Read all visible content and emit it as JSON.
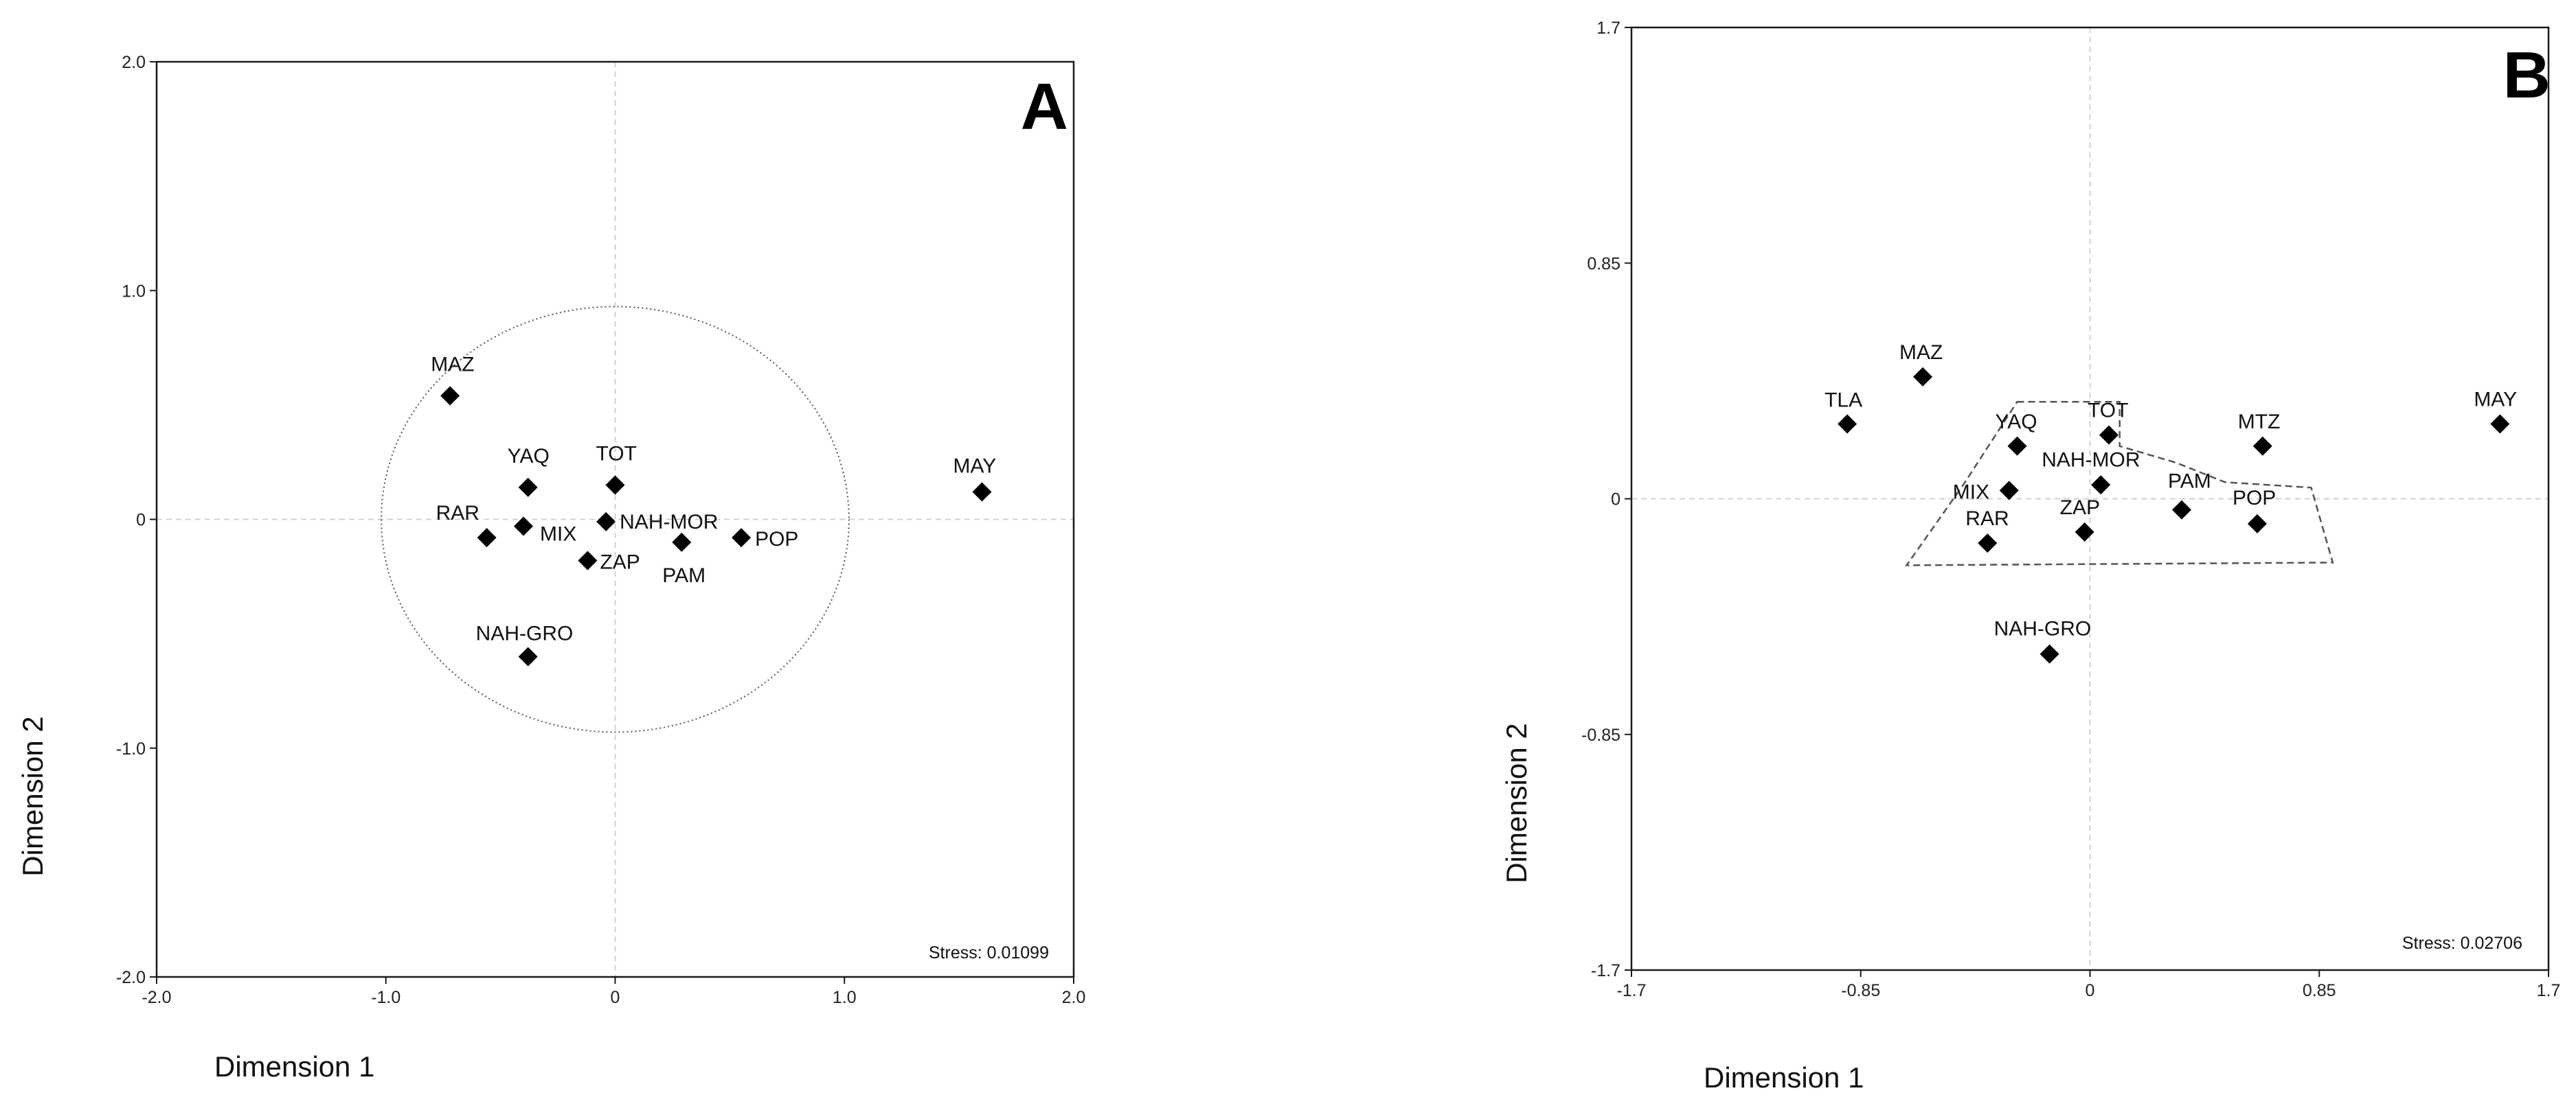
{
  "chart_data": [
    {
      "type": "scatter",
      "panel_label": "A",
      "xlabel": "Dimension 1",
      "ylabel": "Dimension 2",
      "xlim": [
        -2.0,
        2.0
      ],
      "ylim": [
        -2.0,
        2.0
      ],
      "x_ticks": [
        -2.0,
        -1.0,
        0,
        1.0,
        2.0
      ],
      "x_tick_labels": [
        "-2.0",
        "-1.0",
        "0",
        "1.0",
        "2.0"
      ],
      "y_ticks": [
        -2.0,
        -1.0,
        0,
        1.0,
        2.0
      ],
      "y_tick_labels": [
        "-2.0",
        "-1.0",
        "0",
        "1.0",
        "2.0"
      ],
      "grid": false,
      "annotation": "Stress: 0.01099",
      "points": [
        {
          "label": "MAZ",
          "x": -0.72,
          "y": 0.54
        },
        {
          "label": "YAQ",
          "x": -0.38,
          "y": 0.14
        },
        {
          "label": "TOT",
          "x": 0.0,
          "y": 0.15
        },
        {
          "label": "RAR",
          "x": -0.56,
          "y": -0.08
        },
        {
          "label": "MIX",
          "x": -0.4,
          "y": -0.03
        },
        {
          "label": "NAH-MOR",
          "x": -0.04,
          "y": -0.01
        },
        {
          "label": "POP",
          "x": 0.55,
          "y": -0.08
        },
        {
          "label": "PAM",
          "x": 0.29,
          "y": -0.1
        },
        {
          "label": "ZAP",
          "x": -0.12,
          "y": -0.18
        },
        {
          "label": "NAH-GRO",
          "x": -0.38,
          "y": -0.6
        },
        {
          "label": "MAY",
          "x": 1.6,
          "y": 0.12
        }
      ]
    },
    {
      "type": "scatter",
      "panel_label": "B",
      "xlabel": "Dimension 1",
      "ylabel": "Dimension 2",
      "xlim": [
        -1.7,
        1.7
      ],
      "ylim": [
        -1.7,
        1.7
      ],
      "x_ticks": [
        -1.7,
        -0.85,
        0,
        0.85,
        1.7
      ],
      "x_tick_labels": [
        "-1.7",
        "-0.85",
        "0",
        "0.85",
        "1.7"
      ],
      "y_ticks": [
        -1.7,
        -0.85,
        0,
        0.85,
        1.7
      ],
      "y_tick_labels": [
        "-1.7",
        "-0.85",
        "0",
        "0.85",
        "1.7"
      ],
      "grid": false,
      "annotation": "Stress: 0.02706",
      "points": [
        {
          "label": "MAZ",
          "x": -0.62,
          "y": 0.44
        },
        {
          "label": "TLA",
          "x": -0.9,
          "y": 0.27
        },
        {
          "label": "YAQ",
          "x": -0.27,
          "y": 0.19
        },
        {
          "label": "TOT",
          "x": 0.07,
          "y": 0.23
        },
        {
          "label": "MTZ",
          "x": 0.64,
          "y": 0.19
        },
        {
          "label": "MAY",
          "x": 1.52,
          "y": 0.27
        },
        {
          "label": "MIX",
          "x": -0.3,
          "y": 0.03
        },
        {
          "label": "NAH-MOR",
          "x": 0.04,
          "y": 0.05
        },
        {
          "label": "PAM",
          "x": 0.34,
          "y": -0.04
        },
        {
          "label": "POP",
          "x": 0.62,
          "y": -0.09
        },
        {
          "label": "RAR",
          "x": -0.38,
          "y": -0.16
        },
        {
          "label": "ZAP",
          "x": -0.02,
          "y": -0.12
        },
        {
          "label": "NAH-GRO",
          "x": -0.15,
          "y": -0.56
        }
      ]
    }
  ]
}
